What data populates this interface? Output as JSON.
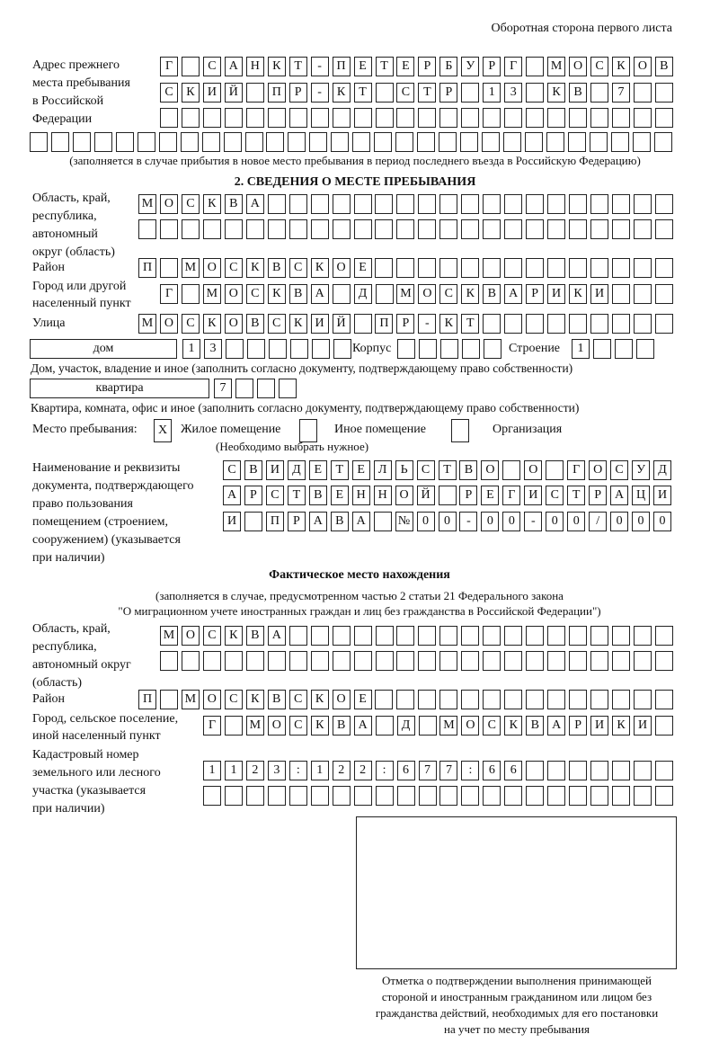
{
  "header": {
    "side_note": "Оборотная сторона первого листа"
  },
  "previous_address": {
    "label": [
      "Адрес прежнего",
      "места пребывания",
      "в Российской",
      "Федерации"
    ],
    "rows": [
      [
        "Г",
        "",
        "С",
        "А",
        "Н",
        "К",
        "Т",
        "-",
        "П",
        "Е",
        "Т",
        "Е",
        "Р",
        "Б",
        "У",
        "Р",
        "Г",
        "",
        "М",
        "О",
        "С",
        "К",
        "О",
        "В"
      ],
      [
        "С",
        "К",
        "И",
        "Й",
        "",
        "П",
        "Р",
        "-",
        "К",
        "Т",
        "",
        "С",
        "Т",
        "Р",
        "",
        "1",
        "3",
        "",
        "К",
        "В",
        "",
        "7",
        "",
        ""
      ],
      [
        "",
        "",
        "",
        "",
        "",
        "",
        "",
        "",
        "",
        "",
        "",
        "",
        "",
        "",
        "",
        "",
        "",
        "",
        "",
        "",
        "",
        "",
        "",
        ""
      ],
      [
        "",
        "",
        "",
        "",
        "",
        "",
        "",
        "",
        "",
        "",
        "",
        "",
        "",
        "",
        "",
        "",
        "",
        "",
        "",
        "",
        "",
        "",
        "",
        "",
        "",
        "",
        "",
        "",
        "",
        ""
      ]
    ],
    "note": "(заполняется в случае прибытия в новое место пребывания в период последнего въезда в Российскую Федерацию)"
  },
  "section2": {
    "title": "2. СВЕДЕНИЯ О МЕСТЕ ПРЕБЫВАНИЯ",
    "region_label": [
      "Область, край,",
      "республика,",
      "автономный",
      "округ (область)"
    ],
    "region_rows": [
      [
        "М",
        "О",
        "С",
        "К",
        "В",
        "А",
        "",
        "",
        "",
        "",
        "",
        "",
        "",
        "",
        "",
        "",
        "",
        "",
        "",
        "",
        "",
        "",
        "",
        "",
        ""
      ],
      [
        "",
        "",
        "",
        "",
        "",
        "",
        "",
        "",
        "",
        "",
        "",
        "",
        "",
        "",
        "",
        "",
        "",
        "",
        "",
        "",
        "",
        "",
        "",
        "",
        ""
      ]
    ],
    "district_label": "Район",
    "district": [
      "П",
      "",
      "М",
      "О",
      "С",
      "К",
      "В",
      "С",
      "К",
      "О",
      "Е",
      "",
      "",
      "",
      "",
      "",
      "",
      "",
      "",
      "",
      "",
      "",
      "",
      "",
      ""
    ],
    "city_label": [
      "Город или другой",
      "населенный пункт"
    ],
    "city": [
      "Г",
      "",
      "М",
      "О",
      "С",
      "К",
      "В",
      "А",
      "",
      "Д",
      "",
      "М",
      "О",
      "С",
      "К",
      "В",
      "А",
      "Р",
      "И",
      "К",
      "И",
      "",
      "",
      ""
    ],
    "street_label": "Улица",
    "street": [
      "М",
      "О",
      "С",
      "К",
      "О",
      "В",
      "С",
      "К",
      "И",
      "Й",
      "",
      "П",
      "Р",
      "-",
      "К",
      "Т",
      "",
      "",
      "",
      "",
      "",
      "",
      "",
      "",
      ""
    ],
    "house_type": "дом",
    "house": [
      "1",
      "3",
      "",
      "",
      "",
      "",
      "",
      ""
    ],
    "building_label": "Корпус",
    "building": [
      "",
      "",
      "",
      "",
      ""
    ],
    "structure_label": "Строение",
    "structure": [
      "1",
      "",
      "",
      ""
    ],
    "house_note": "Дом, участок, владение и иное (заполнить согласно документу, подтверждающему право собственности)",
    "apartment_type": "квартира",
    "apartment": [
      "7",
      "",
      "",
      ""
    ],
    "apartment_note": "Квартира, комната, офис и иное (заполнить согласно документу, подтверждающему право собственности)",
    "stay_place_label": "Место пребывания:",
    "stay_options": [
      {
        "mark": "X",
        "label": "Жилое помещение",
        "checked": true
      },
      {
        "mark": "",
        "label": "Иное помещение",
        "checked": false
      },
      {
        "mark": "",
        "label": "Организация",
        "checked": false
      }
    ],
    "stay_hint": "(Необходимо выбрать нужное)",
    "document_label": [
      "Наименование и реквизиты",
      "документа, подтверждающего",
      "право пользования",
      "помещением (строением,",
      "сооружением) (указывается",
      "при наличии)"
    ],
    "document_rows": [
      [
        "С",
        "В",
        "И",
        "Д",
        "Е",
        "Т",
        "Е",
        "Л",
        "Ь",
        "С",
        "Т",
        "В",
        "О",
        "",
        "О",
        "",
        "Г",
        "О",
        "С",
        "У",
        "Д"
      ],
      [
        "А",
        "Р",
        "С",
        "Т",
        "В",
        "Е",
        "Н",
        "Н",
        "О",
        "Й",
        "",
        "Р",
        "Е",
        "Г",
        "И",
        "С",
        "Т",
        "Р",
        "А",
        "Ц",
        "И"
      ],
      [
        "И",
        "",
        "П",
        "Р",
        "А",
        "В",
        "А",
        "",
        "№",
        "0",
        "0",
        "-",
        "0",
        "0",
        "-",
        "0",
        "0",
        "/",
        "0",
        "0",
        "0"
      ]
    ]
  },
  "actual": {
    "title": "Фактическое место нахождения",
    "note": [
      "(заполняется в случае, предусмотренном частью 2 статьи 21 Федерального закона",
      "\"О миграционном учете иностранных граждан и лиц без гражданства в Российской Федерации\")"
    ],
    "region_label": [
      "Область, край,",
      "республика,",
      "автономный округ",
      "(область)"
    ],
    "region_rows": [
      [
        "М",
        "О",
        "С",
        "К",
        "В",
        "А",
        "",
        "",
        "",
        "",
        "",
        "",
        "",
        "",
        "",
        "",
        "",
        "",
        "",
        "",
        "",
        "",
        "",
        ""
      ],
      [
        "",
        "",
        "",
        "",
        "",
        "",
        "",
        "",
        "",
        "",
        "",
        "",
        "",
        "",
        "",
        "",
        "",
        "",
        "",
        "",
        "",
        "",
        "",
        ""
      ]
    ],
    "district_label": "Район",
    "district": [
      "П",
      "",
      "М",
      "О",
      "С",
      "К",
      "В",
      "С",
      "К",
      "О",
      "Е",
      "",
      "",
      "",
      "",
      "",
      "",
      "",
      "",
      "",
      "",
      "",
      "",
      "",
      ""
    ],
    "city_label": [
      "Город, сельское поселение,",
      "иной населенный пункт"
    ],
    "city": [
      "Г",
      "",
      "М",
      "О",
      "С",
      "К",
      "В",
      "А",
      "",
      "Д",
      "",
      "М",
      "О",
      "С",
      "К",
      "В",
      "А",
      "Р",
      "И",
      "К",
      "И",
      ""
    ],
    "cadastral_label": [
      "Кадастровый номер",
      "земельного или лесного",
      "участка (указывается",
      "при наличии)"
    ],
    "cadastral_rows": [
      [
        "1",
        "1",
        "2",
        "3",
        ":",
        "1",
        "2",
        "2",
        ":",
        "6",
        "7",
        "7",
        ":",
        "6",
        "6",
        "",
        "",
        "",
        "",
        "",
        "",
        ""
      ],
      [
        "",
        "",
        "",
        "",
        "",
        "",
        "",
        "",
        "",
        "",
        "",
        "",
        "",
        "",
        "",
        "",
        "",
        "",
        "",
        "",
        "",
        ""
      ]
    ],
    "confirmation_note": [
      "Отметка о подтверждении выполнения принимающей",
      "стороной и иностранным гражданином или лицом без",
      "гражданства действий, необходимых для его постановки",
      "на учет по месту пребывания"
    ]
  }
}
